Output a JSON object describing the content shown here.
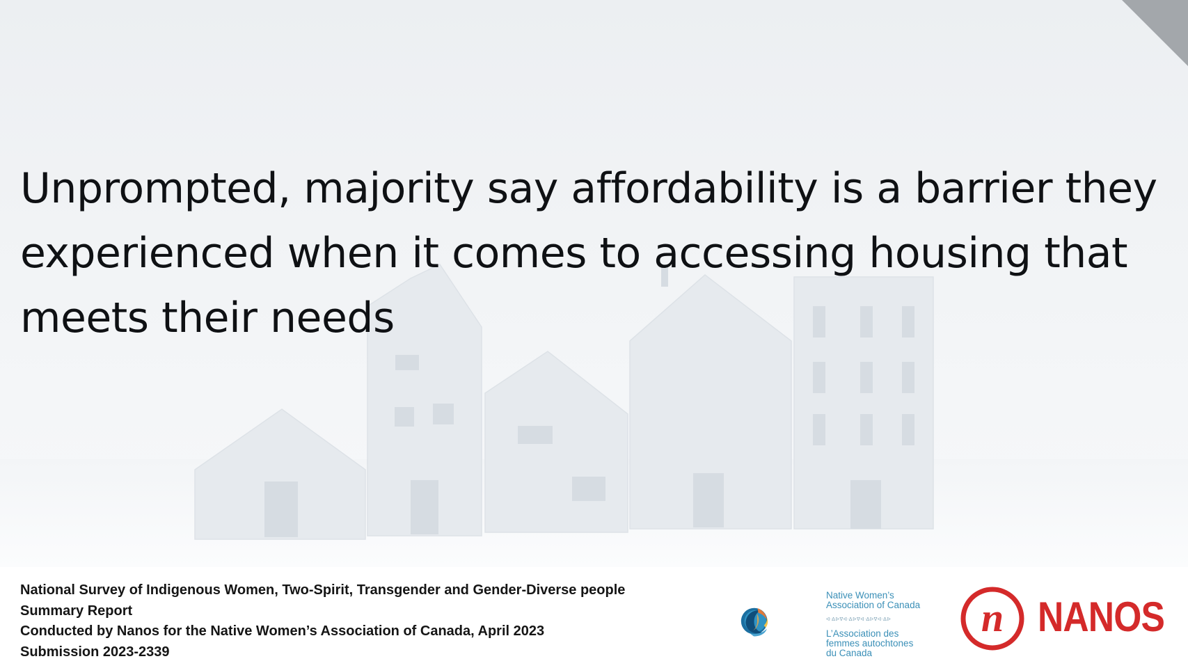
{
  "slide": {
    "title": "Unprompted, majority say affordability is a barrier they experienced when it comes to accessing housing that meets their needs"
  },
  "footer": {
    "lines": [
      "National Survey of Indigenous Women, Two-Spirit, Transgender and Gender-Diverse people",
      "Summary Report",
      "Conducted by Nanos for the Native Women’s Association of Canada, April 2023",
      "Submission 2023-2339"
    ]
  },
  "logos": {
    "nwac": {
      "name_en_line1": "Native Women’s",
      "name_en_line2": "Association of Canada",
      "name_fr_line1": "L’Association des",
      "name_fr_line2": "femmes autochtones",
      "name_fr_line3": "du Canada"
    },
    "nanos": {
      "wordmark": "NANOS",
      "brand_color": "#d42a2a"
    }
  },
  "colors": {
    "title": "#0f1114",
    "footer_text": "#151515",
    "nwac_blue": "#3a8fb7"
  }
}
